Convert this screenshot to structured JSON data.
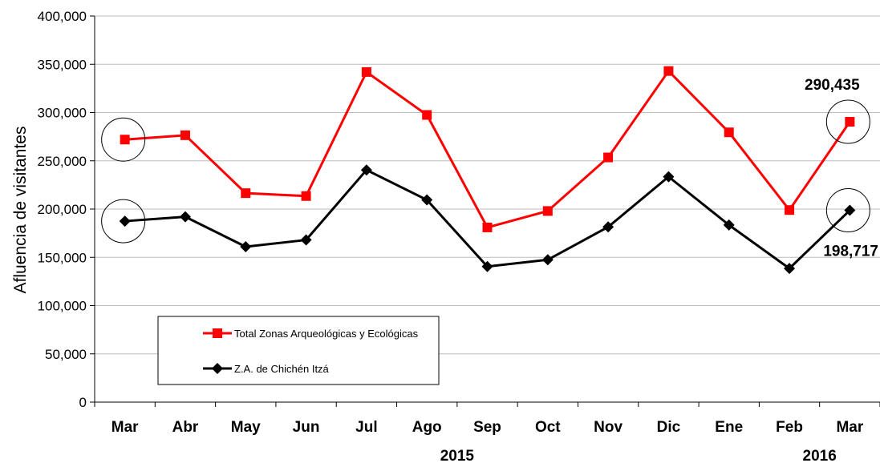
{
  "chart_data": {
    "type": "line",
    "ylabel": "Afluencia de visitantes",
    "ylim": [
      0,
      400000
    ],
    "yticks": [
      0,
      50000,
      100000,
      150000,
      200000,
      250000,
      300000,
      350000,
      400000
    ],
    "ytick_labels": [
      "0",
      "50,000",
      "100,000",
      "150,000",
      "200,000",
      "250,000",
      "300,000",
      "350,000",
      "400,000"
    ],
    "categories": [
      "Mar",
      "Abr",
      "May",
      "Jun",
      "Jul",
      "Ago",
      "Sep",
      "Oct",
      "Nov",
      "Dic",
      "Ene",
      "Feb",
      "Mar"
    ],
    "year_labels": [
      {
        "text": "2015",
        "category_index": 5.5
      },
      {
        "text": "2016",
        "category_index": 11.5
      }
    ],
    "grid": "horizontal",
    "legend_position": "bottom-left",
    "series": [
      {
        "name": "Total Zonas Arqueológicas y Ecológicas",
        "color": "#ff0000",
        "marker": "square",
        "values": [
          272000,
          276500,
          216500,
          213500,
          342000,
          297500,
          181000,
          198000,
          253500,
          343000,
          279500,
          199000,
          290435
        ]
      },
      {
        "name": "Z.A. de Chichén Itzá",
        "color": "#000000",
        "marker": "diamond",
        "values": [
          187500,
          192000,
          161000,
          168000,
          240500,
          209500,
          140500,
          147500,
          181500,
          233500,
          183500,
          138500,
          198717
        ]
      }
    ],
    "annotations": [
      {
        "text": "290,435",
        "series_index": 0,
        "category_index": 12
      },
      {
        "text": "198,717",
        "series_index": 1,
        "category_index": 12
      }
    ],
    "circled_points": [
      {
        "series_index": 0,
        "category_index": 0
      },
      {
        "series_index": 1,
        "category_index": 0
      },
      {
        "series_index": 0,
        "category_index": 12
      },
      {
        "series_index": 1,
        "category_index": 12
      }
    ]
  }
}
